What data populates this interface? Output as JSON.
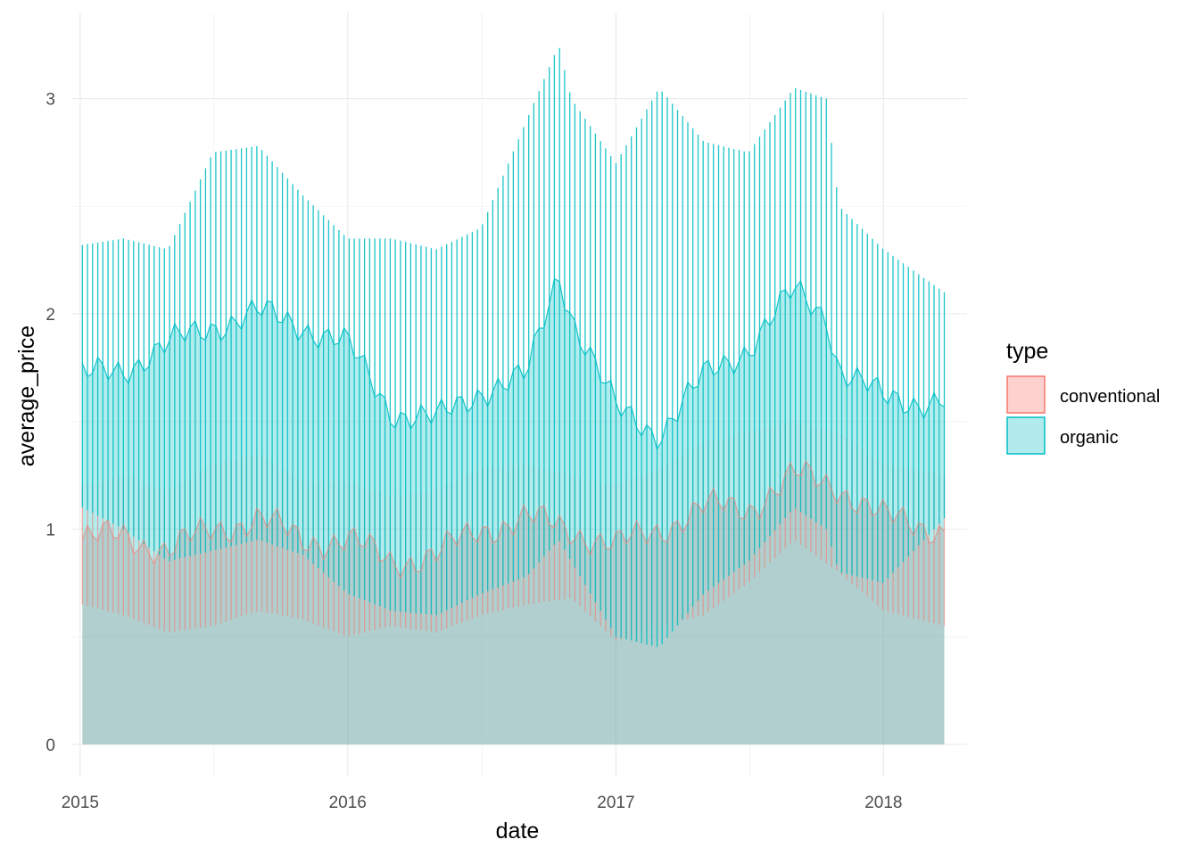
{
  "chart_data": {
    "type": "area",
    "title": "",
    "xlabel": "date",
    "ylabel": "average_price",
    "xlim": [
      "2014-12-20",
      "2018-04-25"
    ],
    "ylim": [
      -0.15,
      3.4
    ],
    "x_ticks": [
      "2015-01-01",
      "2016-01-01",
      "2017-01-01",
      "2018-01-01"
    ],
    "x_tick_labels": [
      "2015",
      "2016",
      "2017",
      "2018"
    ],
    "y_ticks": [
      0,
      1,
      2,
      3
    ],
    "y_tick_labels": [
      "0",
      "1",
      "2",
      "3"
    ],
    "grid": true,
    "legend": {
      "title": "type",
      "position": "right"
    },
    "date_range": [
      "2015-01-04",
      "2018-03-25"
    ],
    "series": [
      {
        "name": "conventional",
        "color": "#F8766D",
        "fill": "#FCD1CE",
        "x": [
          "2015-01-04",
          "2015-03-01",
          "2015-05-01",
          "2015-07-01",
          "2015-09-01",
          "2015-11-01",
          "2016-01-01",
          "2016-03-01",
          "2016-05-01",
          "2016-07-01",
          "2016-09-01",
          "2016-11-01",
          "2017-01-01",
          "2017-03-01",
          "2017-05-01",
          "2017-07-01",
          "2017-09-01",
          "2017-11-01",
          "2018-01-01",
          "2018-03-25"
        ],
        "mean": [
          0.95,
          0.97,
          0.9,
          1.0,
          1.05,
          0.95,
          0.95,
          0.85,
          0.88,
          1.0,
          1.05,
          1.0,
          0.92,
          1.0,
          1.1,
          1.1,
          1.25,
          1.2,
          1.05,
          1.0
        ],
        "min": [
          0.65,
          0.6,
          0.52,
          0.55,
          0.62,
          0.58,
          0.5,
          0.55,
          0.52,
          0.6,
          0.65,
          0.68,
          0.48,
          0.55,
          0.6,
          0.75,
          0.95,
          0.8,
          0.62,
          0.55
        ],
        "max": [
          1.2,
          1.25,
          1.18,
          1.3,
          1.35,
          1.22,
          1.22,
          1.15,
          1.18,
          1.28,
          1.3,
          1.25,
          1.2,
          1.28,
          1.4,
          1.45,
          1.5,
          1.45,
          1.3,
          1.25
        ]
      },
      {
        "name": "organic",
        "color": "#00BFC4",
        "fill": "#B2EBED",
        "x": [
          "2015-01-04",
          "2015-03-01",
          "2015-05-01",
          "2015-07-01",
          "2015-09-01",
          "2015-11-01",
          "2016-01-01",
          "2016-03-01",
          "2016-05-01",
          "2016-07-01",
          "2016-09-01",
          "2016-10-15",
          "2016-11-01",
          "2017-01-01",
          "2017-03-01",
          "2017-05-01",
          "2017-07-01",
          "2017-09-01",
          "2017-10-15",
          "2017-11-01",
          "2018-01-01",
          "2018-03-25"
        ],
        "mean": [
          1.7,
          1.75,
          1.85,
          1.95,
          2.0,
          1.95,
          1.85,
          1.55,
          1.5,
          1.65,
          1.7,
          2.2,
          2.0,
          1.55,
          1.45,
          1.7,
          1.85,
          2.1,
          2.0,
          1.75,
          1.6,
          1.6
        ],
        "min": [
          1.1,
          1.0,
          0.85,
          0.9,
          0.95,
          0.88,
          0.7,
          0.62,
          0.6,
          0.7,
          0.78,
          0.95,
          0.85,
          0.5,
          0.45,
          0.7,
          0.85,
          1.1,
          1.0,
          0.8,
          0.75,
          1.05
        ],
        "max": [
          2.32,
          2.35,
          2.3,
          2.75,
          2.78,
          2.55,
          2.35,
          2.35,
          2.3,
          2.4,
          2.9,
          3.25,
          3.0,
          2.7,
          3.05,
          2.8,
          2.75,
          3.05,
          3.0,
          2.5,
          2.3,
          2.1
        ]
      }
    ]
  }
}
